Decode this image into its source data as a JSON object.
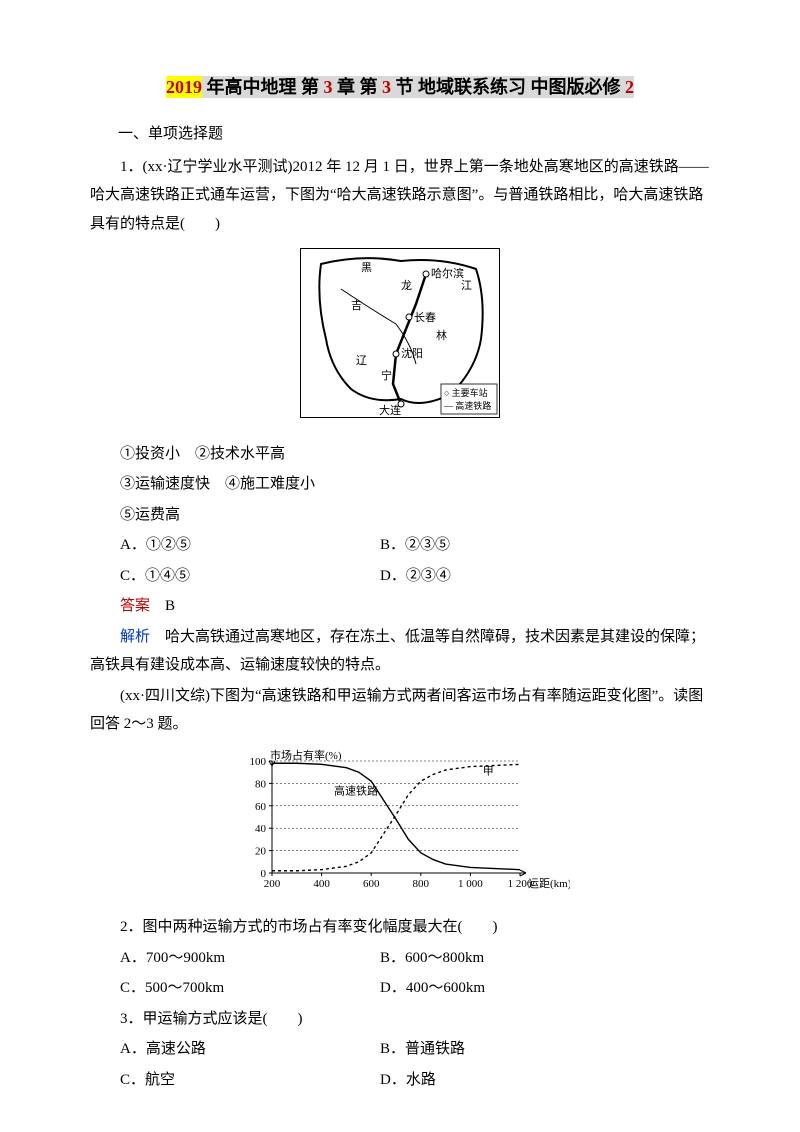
{
  "title": {
    "hl1": "2019",
    "hl2_a": " 年高中地理 第 ",
    "num_a": "3",
    "hl2_b": " 章 第 ",
    "num_b": "3",
    "hl2_c": " 节 地域联系练习 中图版必修 ",
    "num_c": "2"
  },
  "section_head": "一、单项选择题",
  "q1": {
    "stem_a": "1．(xx·辽宁学业水平测试)2012 年 12 月 1 日，世界上第一条地处高寒地区的高速铁路——哈大高速铁路正式通车运营，下图为“哈大高速铁路示意图”。与普通铁路相比，哈大高速铁路具有的特点是(　　)",
    "map": {
      "labels": {
        "heilong": "黑",
        "jiang": "江",
        "long": "龙",
        "jilin_ji": "吉",
        "jilin_lin": "林",
        "liao": "辽",
        "ning": "宁",
        "haerbin": "哈尔滨",
        "changchun": "长春",
        "shenyang": "沈阳",
        "dalian": "大连",
        "legend_station": "○ 主要车站",
        "legend_rail": "— 高速铁路"
      },
      "colors": {
        "border": "#000000",
        "line": "#000000"
      }
    },
    "lines": {
      "l1": "①投资小　②技术水平高",
      "l2": "③运输速度快　④施工难度小",
      "l3": "⑤运费高"
    },
    "opts": {
      "A": "A．①②⑤",
      "B": "B．②③⑤",
      "C": "C．①④⑤",
      "D": "D．②③④"
    },
    "answer_label": "答案",
    "answer_val": "B",
    "explain_label": "解析",
    "explain_text": "哈大高铁通过高寒地区，存在冻土、低温等自然障碍，技术因素是其建设的保障；高铁具有建设成本高、运输速度较快的特点。"
  },
  "stem2": "(xx·四川文综)下图为“高速铁路和甲运输方式两者间客运市场占有率随运距变化图”。读图回答 2～3 题。",
  "chart": {
    "type": "line",
    "ylabel": "市场占有率(%)",
    "xlabel": "运距(km)",
    "ylim": [
      0,
      100
    ],
    "ytick_step": 20,
    "xlim": [
      200,
      1200
    ],
    "xtick_step": 200,
    "series": {
      "highspeed": {
        "label": "高速铁路",
        "style": "solid",
        "color": "#000000",
        "points": [
          [
            200,
            98
          ],
          [
            300,
            98
          ],
          [
            400,
            97
          ],
          [
            500,
            94
          ],
          [
            550,
            90
          ],
          [
            600,
            82
          ],
          [
            650,
            65
          ],
          [
            700,
            48
          ],
          [
            750,
            30
          ],
          [
            800,
            18
          ],
          [
            850,
            12
          ],
          [
            900,
            8
          ],
          [
            1000,
            5
          ],
          [
            1100,
            4
          ],
          [
            1200,
            3
          ]
        ]
      },
      "jia": {
        "label": "甲",
        "style": "dashed",
        "color": "#000000",
        "points": [
          [
            200,
            2
          ],
          [
            300,
            2
          ],
          [
            400,
            3
          ],
          [
            500,
            6
          ],
          [
            550,
            10
          ],
          [
            600,
            18
          ],
          [
            650,
            35
          ],
          [
            700,
            52
          ],
          [
            750,
            70
          ],
          [
            800,
            82
          ],
          [
            850,
            88
          ],
          [
            900,
            92
          ],
          [
            1000,
            95
          ],
          [
            1100,
            96
          ],
          [
            1200,
            97
          ]
        ]
      }
    },
    "font_size": 11,
    "grid_color": "#000000",
    "background_color": "#ffffff"
  },
  "q2": {
    "stem": "2．图中两种运输方式的市场占有率变化幅度最大在(　　)",
    "opts": {
      "A": "A．700～900km",
      "B": "B．600～800km",
      "C": "C．500～700km",
      "D": "D．400～600km"
    }
  },
  "q3": {
    "stem": "3．甲运输方式应该是(　　)",
    "opts": {
      "A": "A．高速公路",
      "B": "B．普通铁路",
      "C": "C．航空",
      "D": "D．水路"
    }
  }
}
